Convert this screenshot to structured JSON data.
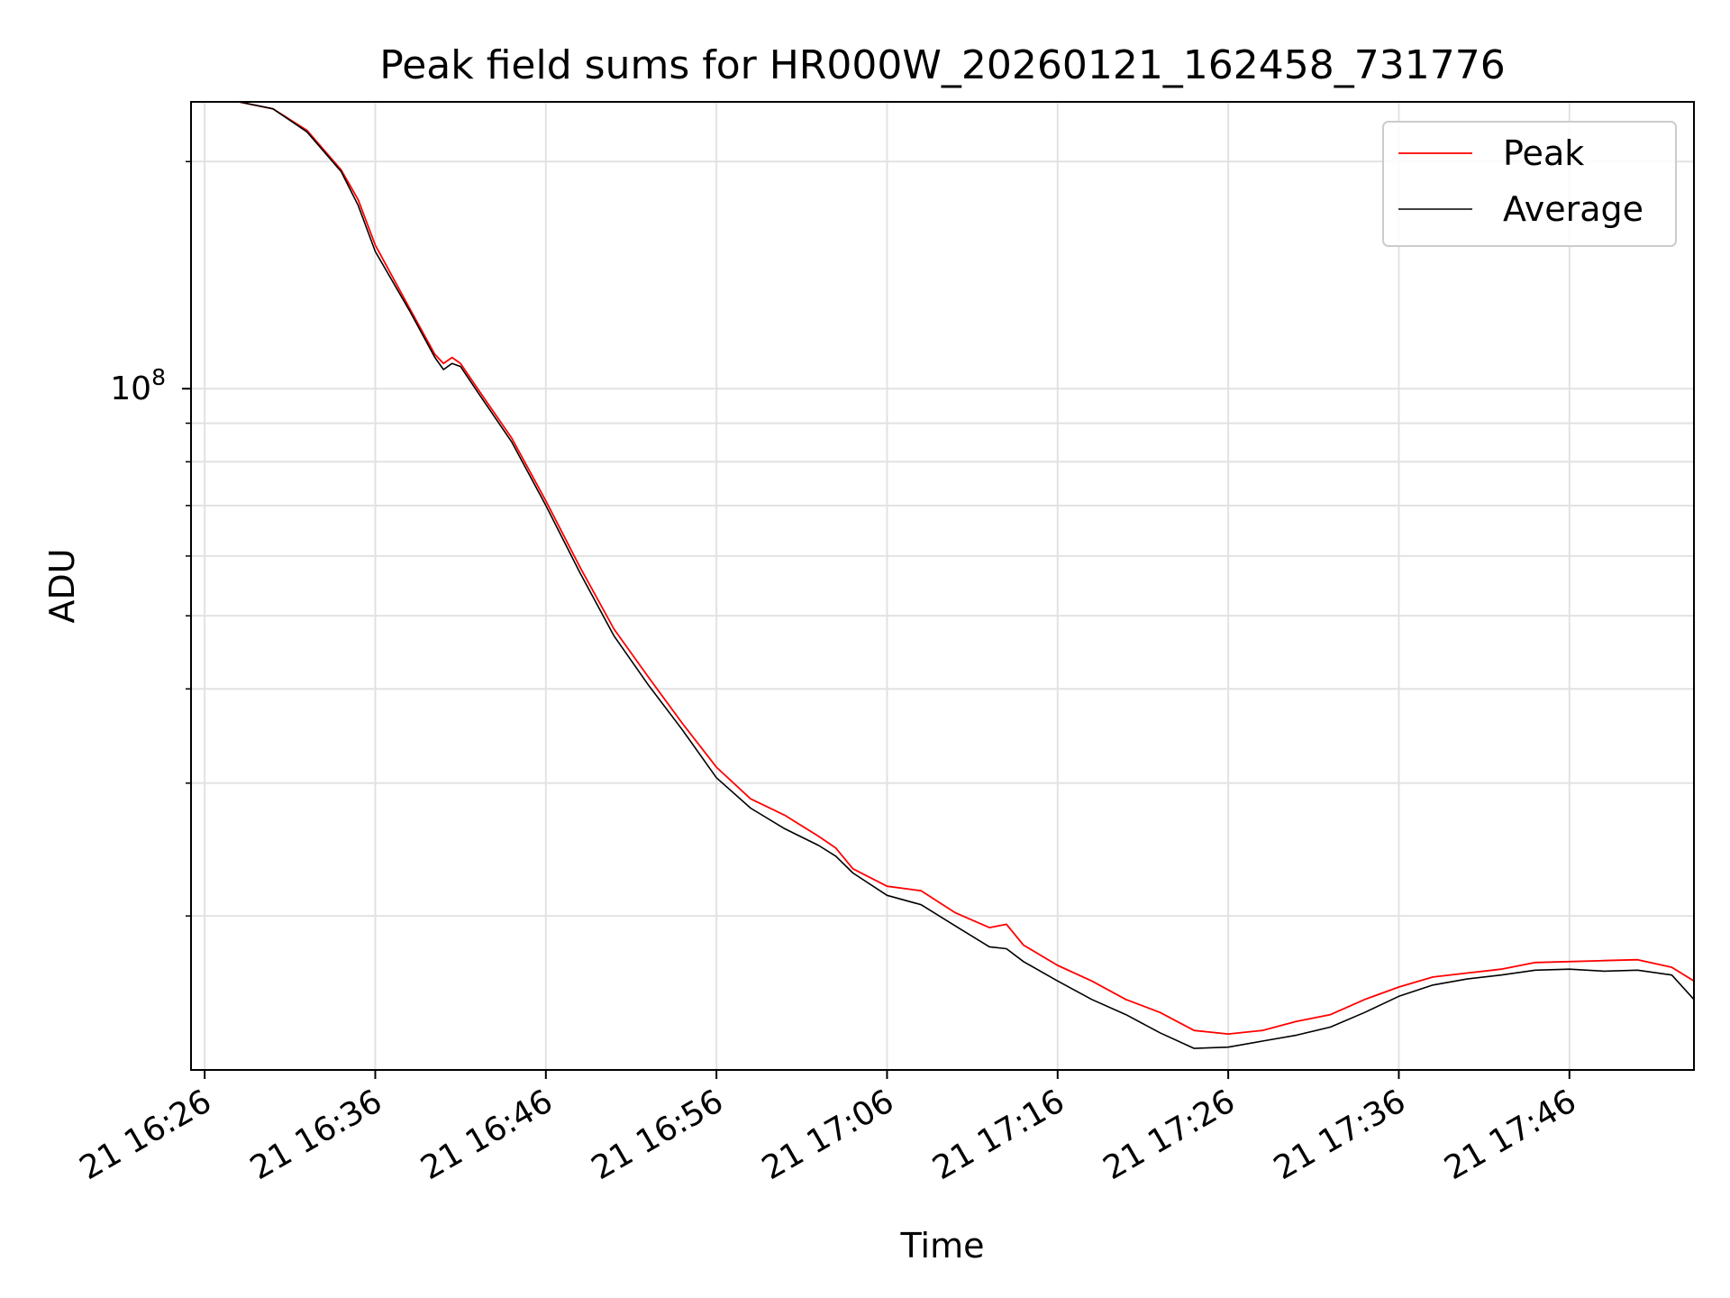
{
  "chart_data": {
    "type": "line",
    "title": "Peak field sums for HR000W_20260121_162458_731776",
    "xlabel": "Time",
    "ylabel": "ADU",
    "yscale": "log",
    "ylim": [
      12500000,
      240000000
    ],
    "xlim_minutes": [
      -0.8,
      87.3
    ],
    "grid": true,
    "legend_position": "top-right",
    "x_ticks": [
      {
        "minutes": 0,
        "label": "21 16:26"
      },
      {
        "minutes": 10,
        "label": "21 16:36"
      },
      {
        "minutes": 20,
        "label": "21 16:46"
      },
      {
        "minutes": 30,
        "label": "21 16:56"
      },
      {
        "minutes": 40,
        "label": "21 17:06"
      },
      {
        "minutes": 50,
        "label": "21 17:16"
      },
      {
        "minutes": 60,
        "label": "21 17:26"
      },
      {
        "minutes": 70,
        "label": "21 17:36"
      },
      {
        "minutes": 80,
        "label": "21 17:46"
      }
    ],
    "y_major_ticks": [
      {
        "value": 100000000,
        "base": "10",
        "exp": "8"
      }
    ],
    "y_minor_ticks": [
      20000000,
      30000000,
      40000000,
      50000000,
      60000000,
      70000000,
      80000000,
      90000000,
      200000000
    ],
    "x_minutes": [
      -0.8,
      2,
      4,
      6,
      8,
      9,
      10,
      12,
      13.5,
      14,
      14.5,
      15,
      16,
      18,
      20,
      22,
      24,
      26,
      28,
      30,
      32,
      34,
      36,
      37,
      38,
      40,
      42,
      44,
      46,
      47,
      48,
      50,
      52,
      54,
      56,
      58,
      60,
      62,
      64,
      66,
      68,
      70,
      72,
      74,
      76,
      78,
      80,
      82,
      84,
      86,
      87.3
    ],
    "series": [
      {
        "name": "Peak",
        "color": "#ff0000",
        "values": [
          240000000,
          240000000,
          235000000,
          220000000,
          195000000,
          178000000,
          155000000,
          128000000,
          111000000,
          108000000,
          110000000,
          108000000,
          100000000,
          86000000,
          71000000,
          58000000,
          48000000,
          41500000,
          36000000,
          31500000,
          28600000,
          27200000,
          25500000,
          24600000,
          23100000,
          21900000,
          21600000,
          20200000,
          19300000,
          19500000,
          18300000,
          17200000,
          16400000,
          15500000,
          14900000,
          14100000,
          13950000,
          14100000,
          14500000,
          14800000,
          15500000,
          16100000,
          16600000,
          16800000,
          17000000,
          17350000,
          17400000,
          17450000,
          17500000,
          17100000,
          16400000
        ]
      },
      {
        "name": "Average",
        "color": "#000000",
        "values": [
          240000000,
          240000000,
          235000000,
          219000000,
          194000000,
          175000000,
          152000000,
          127000000,
          110000000,
          106000000,
          108000000,
          107000000,
          99000000,
          85000000,
          70000000,
          57000000,
          47000000,
          40500000,
          35300000,
          30500000,
          27800000,
          26100000,
          24800000,
          24000000,
          22800000,
          21300000,
          20700000,
          19400000,
          18200000,
          18100000,
          17400000,
          16400000,
          15500000,
          14800000,
          14000000,
          13350000,
          13400000,
          13650000,
          13900000,
          14250000,
          14900000,
          15650000,
          16200000,
          16500000,
          16700000,
          16950000,
          17000000,
          16900000,
          16950000,
          16700000,
          15500000
        ]
      }
    ]
  }
}
